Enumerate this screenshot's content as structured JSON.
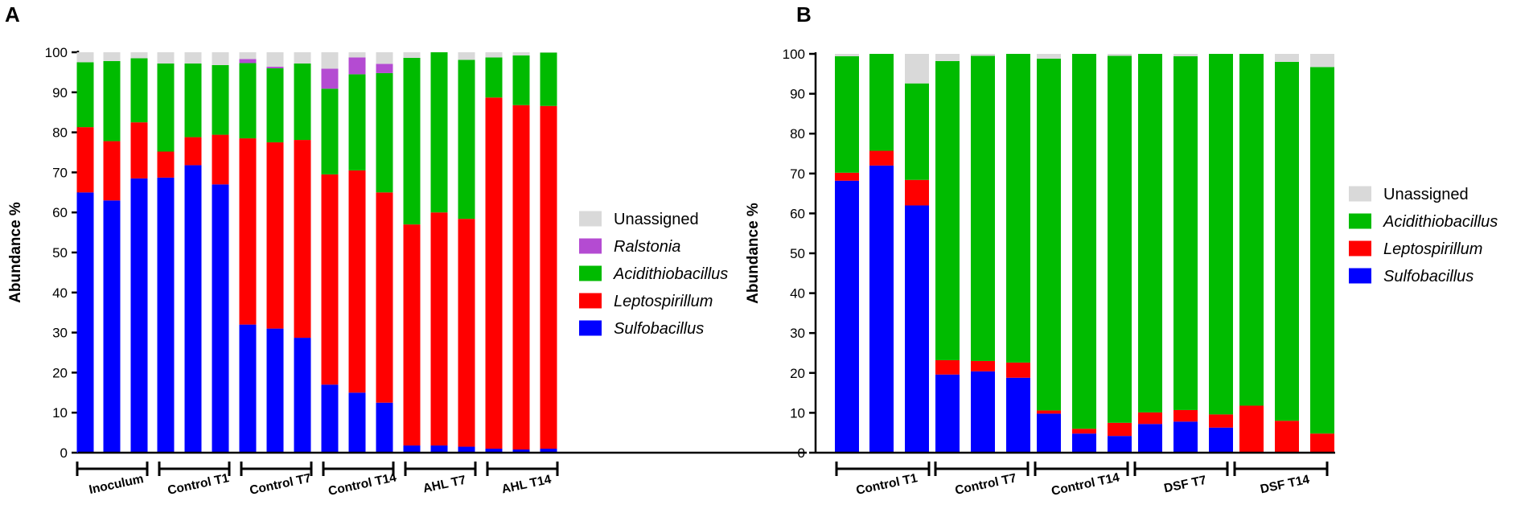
{
  "chart_data": [
    {
      "panel": "A",
      "type": "stacked-bar",
      "ylabel": "Abundance %",
      "ylim": [
        0,
        100
      ],
      "yticks": [
        0,
        10,
        20,
        30,
        40,
        50,
        60,
        70,
        80,
        90,
        100
      ],
      "legend_order": [
        "Unassigned",
        "Ralstonia",
        "Acidithiobacillus",
        "Leptospirillum",
        "Sulfobacillus"
      ],
      "series": [
        {
          "name": "Sulfobacillus",
          "color": "#0000ff",
          "italic": true,
          "values": [
            65,
            63,
            68.5,
            68.7,
            71.8,
            67,
            32,
            31,
            28.7,
            17,
            15,
            12.5,
            1.8,
            1.8,
            1.5,
            1,
            0.8,
            1
          ]
        },
        {
          "name": "Leptospirillum",
          "color": "#ff0000",
          "italic": true,
          "values": [
            16.3,
            14.8,
            14,
            6.5,
            7,
            12.4,
            46.5,
            46.5,
            49.4,
            52.5,
            55.5,
            52.5,
            55.2,
            58.2,
            56.9,
            87.7,
            86,
            85.6
          ]
        },
        {
          "name": "Acidithiobacillus",
          "color": "#00bb00",
          "italic": true,
          "values": [
            16.2,
            20,
            16,
            22,
            18.4,
            17.4,
            18.8,
            18.5,
            19.1,
            21.4,
            24,
            29.8,
            41.6,
            40,
            39.7,
            10,
            12.4,
            13.3
          ]
        },
        {
          "name": "Ralstonia",
          "color": "#b44bd2",
          "italic": true,
          "values": [
            0,
            0,
            0,
            0,
            0,
            0,
            1,
            0.4,
            0,
            5,
            4.2,
            2.3,
            0,
            0,
            0,
            0,
            0,
            0
          ]
        },
        {
          "name": "Unassigned",
          "color": "#d9d9d9",
          "italic": false,
          "values": [
            2.5,
            2.2,
            1.5,
            2.8,
            2.8,
            3.2,
            1.7,
            3.6,
            2.8,
            4.1,
            1.3,
            2.9,
            1.4,
            0,
            1.9,
            1.3,
            0.8,
            0.1
          ]
        }
      ],
      "groups": [
        {
          "label": "Inoculum",
          "bars": 3
        },
        {
          "label": "Control T1",
          "bars": 3
        },
        {
          "label": "Control T7",
          "bars": 3
        },
        {
          "label": "Control T14",
          "bars": 3
        },
        {
          "label": "AHL T7",
          "bars": 3
        },
        {
          "label": "AHL T14",
          "bars": 3
        }
      ]
    },
    {
      "panel": "B",
      "type": "stacked-bar",
      "ylabel": "Abundance %",
      "ylim": [
        0,
        100
      ],
      "yticks": [
        0,
        10,
        20,
        30,
        40,
        50,
        60,
        70,
        80,
        90,
        100
      ],
      "legend_order": [
        "Unassigned",
        "Acidithiobacillus",
        "Leptospirillum",
        "Sulfobacillus"
      ],
      "series": [
        {
          "name": "Sulfobacillus",
          "color": "#0000ff",
          "italic": true,
          "values": [
            68.2,
            72,
            62,
            19.6,
            20.4,
            18.8,
            9.8,
            4.8,
            4.2,
            7.2,
            7.8,
            6.3,
            0,
            0,
            0
          ]
        },
        {
          "name": "Leptospirillum",
          "color": "#ff0000",
          "italic": true,
          "values": [
            2,
            3.7,
            6.4,
            3.6,
            2.6,
            3.8,
            0.8,
            1.2,
            3.3,
            2.9,
            2.9,
            3.3,
            11.8,
            8,
            4.8
          ]
        },
        {
          "name": "Acidithiobacillus",
          "color": "#00bb00",
          "italic": true,
          "values": [
            29.2,
            24.3,
            24.2,
            75,
            76.5,
            77.4,
            88.2,
            94,
            92,
            89.9,
            88.7,
            90.4,
            88.2,
            90,
            91.9
          ]
        },
        {
          "name": "Unassigned",
          "color": "#d9d9d9",
          "italic": false,
          "values": [
            0.6,
            0,
            7.4,
            1.8,
            0.5,
            0,
            1.2,
            0,
            0.5,
            0,
            0.6,
            0,
            0,
            2,
            3.3
          ]
        }
      ],
      "groups": [
        {
          "label": "Control T1",
          "bars": 3
        },
        {
          "label": "Control T7",
          "bars": 3
        },
        {
          "label": "Control T14",
          "bars": 3
        },
        {
          "label": "DSF T7",
          "bars": 3
        },
        {
          "label": "DSF T14",
          "bars": 3
        }
      ]
    }
  ]
}
